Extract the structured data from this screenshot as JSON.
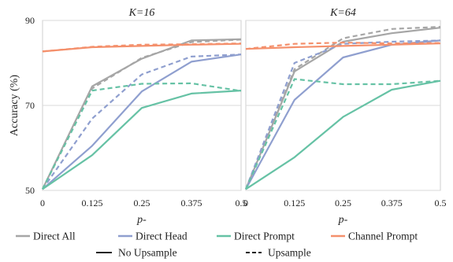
{
  "chart_data": [
    {
      "type": "line",
      "title": "K=16",
      "xlabel": "p-",
      "ylabel": "Accuracy (%)",
      "x": [
        "0",
        "0.125",
        "0.25",
        "0.375",
        "0.5"
      ],
      "ylim": [
        50,
        90
      ],
      "yticks": [
        "50",
        "70",
        "90"
      ],
      "series": [
        {
          "name": "Direct All",
          "style": "No Upsample",
          "color": "#a6a6a6",
          "values": [
            50.3,
            74.5,
            81.0,
            85.3,
            85.6
          ]
        },
        {
          "name": "Direct All",
          "style": "Upsample",
          "color": "#a6a6a6",
          "values": [
            50.3,
            74.0,
            81.2,
            84.9,
            85.5
          ]
        },
        {
          "name": "Direct Head",
          "style": "No Upsample",
          "color": "#8f9fcf",
          "values": [
            50.3,
            60.5,
            73.3,
            80.3,
            82.0
          ]
        },
        {
          "name": "Direct Head",
          "style": "Upsample",
          "color": "#8f9fcf",
          "values": [
            50.3,
            66.9,
            77.3,
            81.5,
            82.0
          ]
        },
        {
          "name": "Direct Prompt",
          "style": "No Upsample",
          "color": "#66c2a5",
          "values": [
            50.3,
            58.3,
            69.4,
            72.8,
            73.5
          ]
        },
        {
          "name": "Direct Prompt",
          "style": "Upsample",
          "color": "#66c2a5",
          "values": [
            50.3,
            73.5,
            75.1,
            75.2,
            73.4
          ]
        },
        {
          "name": "Channel Prompt",
          "style": "No Upsample",
          "color": "#f4906c",
          "values": [
            82.7,
            83.7,
            84.0,
            84.3,
            84.5
          ]
        },
        {
          "name": "Channel Prompt",
          "style": "Upsample",
          "color": "#f4906c",
          "values": [
            82.7,
            83.8,
            84.3,
            84.4,
            84.6
          ]
        }
      ]
    },
    {
      "type": "line",
      "title": "K=64",
      "xlabel": "p-",
      "ylabel": "",
      "x": [
        "0",
        "0.125",
        "0.25",
        "0.375",
        "0.5"
      ],
      "ylim": [
        50,
        90
      ],
      "series": [
        {
          "name": "Direct All",
          "style": "No Upsample",
          "color": "#a6a6a6",
          "values": [
            50.3,
            78.0,
            85.0,
            87.0,
            88.3
          ]
        },
        {
          "name": "Direct All",
          "style": "Upsample",
          "color": "#a6a6a6",
          "values": [
            50.3,
            78.5,
            85.8,
            88.0,
            88.5
          ]
        },
        {
          "name": "Direct Head",
          "style": "No Upsample",
          "color": "#8f9fcf",
          "values": [
            50.3,
            71.3,
            81.3,
            84.3,
            85.3
          ]
        },
        {
          "name": "Direct Head",
          "style": "Upsample",
          "color": "#8f9fcf",
          "values": [
            50.3,
            80.0,
            84.5,
            85.0,
            85.3
          ]
        },
        {
          "name": "Direct Prompt",
          "style": "No Upsample",
          "color": "#66c2a5",
          "values": [
            50.3,
            57.8,
            67.3,
            73.7,
            75.8
          ]
        },
        {
          "name": "Direct Prompt",
          "style": "Upsample",
          "color": "#66c2a5",
          "values": [
            50.3,
            76.2,
            75.0,
            75.0,
            75.8
          ]
        },
        {
          "name": "Channel Prompt",
          "style": "No Upsample",
          "color": "#f4906c",
          "values": [
            83.3,
            83.7,
            84.0,
            84.3,
            84.6
          ]
        },
        {
          "name": "Channel Prompt",
          "style": "Upsample",
          "color": "#f4906c",
          "values": [
            83.3,
            84.5,
            84.8,
            84.6,
            84.7
          ]
        }
      ]
    }
  ],
  "legend": {
    "entries": [
      {
        "label": "Direct All",
        "color": "#a6a6a6"
      },
      {
        "label": "Direct Head",
        "color": "#8f9fcf"
      },
      {
        "label": "Direct Prompt",
        "color": "#66c2a5"
      },
      {
        "label": "Channel Prompt",
        "color": "#f4906c"
      }
    ],
    "styles": [
      {
        "label": "No Upsample",
        "dash": "solid"
      },
      {
        "label": "Upsample",
        "dash": "dashed"
      }
    ]
  }
}
